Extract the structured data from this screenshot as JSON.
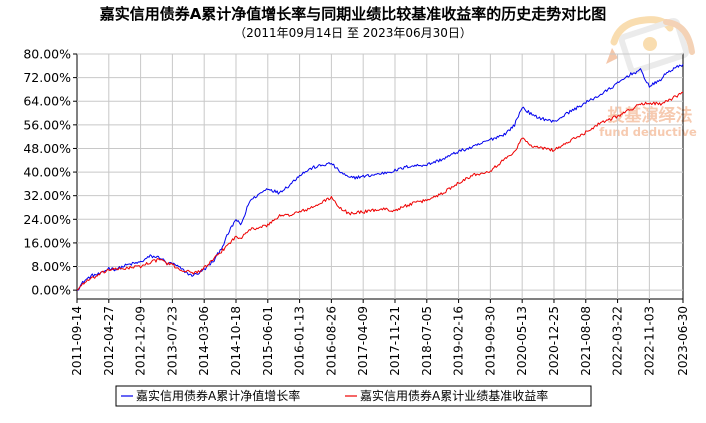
{
  "chart_data": {
    "type": "line",
    "title": "嘉实信用债券A累计净值增长率与同期业绩比较基准收益率的历史走势对比图",
    "subtitle": "（2011年09月14日 至 2023年06月30日）",
    "x_tick_labels": [
      "2011-09-14",
      "2012-04-27",
      "2012-12-09",
      "2013-07-23",
      "2014-03-06",
      "2014-10-18",
      "2015-06-01",
      "2016-01-13",
      "2016-08-26",
      "2017-04-09",
      "2017-11-21",
      "2018-07-05",
      "2019-02-16",
      "2019-09-30",
      "2020-05-13",
      "2020-12-25",
      "2021-08-08",
      "2022-03-22",
      "2022-11-03",
      "2023-06-30"
    ],
    "y_tick_labels": [
      "0.00%",
      "8.00%",
      "16.00%",
      "24.00%",
      "32.00%",
      "40.00%",
      "48.00%",
      "56.00%",
      "64.00%",
      "72.00%",
      "80.00%"
    ],
    "ylim": [
      -3,
      80
    ],
    "grid": true,
    "legend_position": "bottom",
    "x_dates": [
      "2011-09-14",
      "2011-11-01",
      "2012-01-01",
      "2012-03-01",
      "2012-04-27",
      "2012-06-15",
      "2012-09-01",
      "2012-12-09",
      "2013-02-15",
      "2013-05-01",
      "2013-06-15",
      "2013-07-23",
      "2013-09-15",
      "2013-12-01",
      "2014-01-15",
      "2014-03-06",
      "2014-05-15",
      "2014-07-15",
      "2014-09-01",
      "2014-10-18",
      "2014-11-20",
      "2014-12-20",
      "2015-01-20",
      "2015-03-15",
      "2015-06-01",
      "2015-08-15",
      "2015-11-01",
      "2016-01-13",
      "2016-04-15",
      "2016-08-26",
      "2016-10-15",
      "2016-12-31",
      "2017-04-09",
      "2017-08-15",
      "2017-11-21",
      "2018-03-01",
      "2018-07-05",
      "2018-11-01",
      "2019-02-16",
      "2019-06-01",
      "2019-09-30",
      "2020-01-15",
      "2020-03-20",
      "2020-05-13",
      "2020-08-01",
      "2020-12-25",
      "2021-04-01",
      "2021-08-08",
      "2021-12-01",
      "2022-03-22",
      "2022-06-15",
      "2022-09-01",
      "2022-11-03",
      "2023-01-15",
      "2023-03-15",
      "2023-06-30"
    ],
    "series": [
      {
        "name": "嘉实信用债券A累计净值增长率",
        "color": "#0000ee",
        "values": [
          0.0,
          3.0,
          5.0,
          5.5,
          7.5,
          7.0,
          8.5,
          9.5,
          11.5,
          11.0,
          9.0,
          9.0,
          7.5,
          5.0,
          5.5,
          7.0,
          10.0,
          15.0,
          20.0,
          24.0,
          22.0,
          25.5,
          30.0,
          32.0,
          34.5,
          33.0,
          35.5,
          39.0,
          41.5,
          43.0,
          40.5,
          38.0,
          38.5,
          39.5,
          40.5,
          42.0,
          42.5,
          44.5,
          47.0,
          48.5,
          51.0,
          53.0,
          56.0,
          62.0,
          59.0,
          57.0,
          60.0,
          63.5,
          66.5,
          70.0,
          73.0,
          74.5,
          69.0,
          71.0,
          74.0,
          76.5
        ]
      },
      {
        "name": "嘉实信用债券A累计业绩基准收益率",
        "color": "#ee0000",
        "values": [
          0.0,
          2.5,
          4.0,
          5.5,
          7.0,
          7.0,
          7.5,
          8.0,
          9.5,
          10.5,
          9.0,
          8.5,
          7.0,
          6.0,
          6.0,
          7.5,
          10.5,
          13.5,
          16.0,
          18.0,
          17.5,
          19.5,
          20.5,
          21.0,
          22.0,
          25.0,
          25.5,
          26.5,
          28.0,
          31.5,
          28.0,
          26.0,
          26.5,
          27.5,
          27.0,
          29.0,
          30.5,
          33.0,
          36.5,
          39.0,
          40.5,
          44.5,
          47.0,
          51.5,
          48.5,
          47.5,
          50.0,
          53.5,
          57.0,
          59.0,
          61.0,
          63.0,
          63.5,
          63.0,
          64.0,
          67.0
        ]
      }
    ]
  },
  "watermark": {
    "text_cn": "投基演绎法",
    "text_en": "fund deductive"
  }
}
